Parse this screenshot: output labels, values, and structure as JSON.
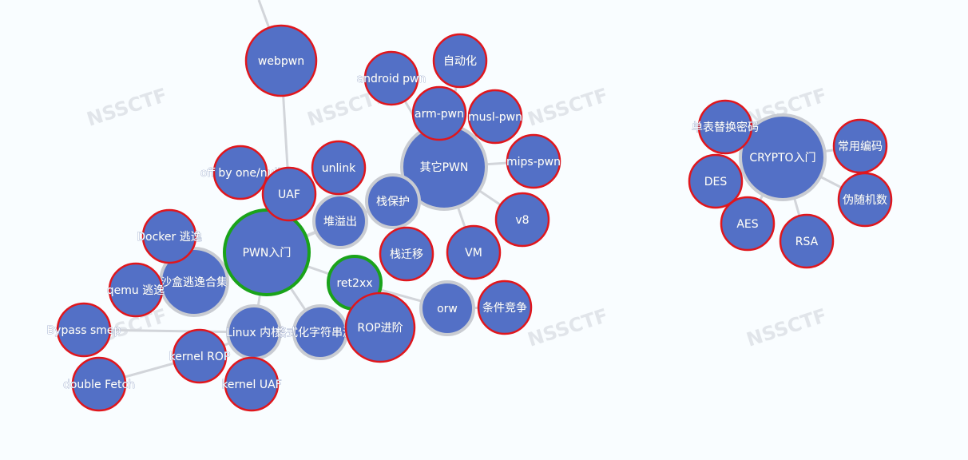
{
  "watermark": "NSSCTF",
  "colors": {
    "node_fill": "#5370c6",
    "leaf_border": "#e0161c",
    "hub_border": "#c9ccd2",
    "active_border": "#1aa31a",
    "edge": "#d2d5da"
  },
  "nodes": [
    {
      "id": "webpwn",
      "label": "webpwn",
      "kind": "leaf"
    },
    {
      "id": "android",
      "label": "android pwn",
      "kind": "leaf"
    },
    {
      "id": "auto",
      "label": "自动化",
      "kind": "leaf"
    },
    {
      "id": "arm",
      "label": "arm-pwn",
      "kind": "leaf"
    },
    {
      "id": "musl",
      "label": "musl-pwn",
      "kind": "leaf"
    },
    {
      "id": "other",
      "label": "其它PWN",
      "kind": "hub"
    },
    {
      "id": "mips",
      "label": "mips-pwn",
      "kind": "leaf"
    },
    {
      "id": "unlink",
      "label": "unlink",
      "kind": "leaf"
    },
    {
      "id": "offby",
      "label": "off by one/null",
      "kind": "leaf"
    },
    {
      "id": "uaf",
      "label": "UAF",
      "kind": "leaf"
    },
    {
      "id": "stackprot",
      "label": "栈保护",
      "kind": "hub"
    },
    {
      "id": "heap",
      "label": "堆溢出",
      "kind": "hub"
    },
    {
      "id": "v8",
      "label": "v8",
      "kind": "leaf"
    },
    {
      "id": "pwn",
      "label": "PWN入门",
      "kind": "active"
    },
    {
      "id": "stackmig",
      "label": "栈迁移",
      "kind": "leaf"
    },
    {
      "id": "vm",
      "label": "VM",
      "kind": "leaf"
    },
    {
      "id": "docker",
      "label": "Docker 逃逸",
      "kind": "leaf"
    },
    {
      "id": "sandbox",
      "label": "沙盒逃逸合集",
      "kind": "hub"
    },
    {
      "id": "qemu",
      "label": "qemu 逃逸",
      "kind": "leaf"
    },
    {
      "id": "ret2xx",
      "label": "ret2xx",
      "kind": "active"
    },
    {
      "id": "rop",
      "label": "ROP进阶",
      "kind": "leaf"
    },
    {
      "id": "orw",
      "label": "orw",
      "kind": "hub"
    },
    {
      "id": "race",
      "label": "条件竞争",
      "kind": "leaf"
    },
    {
      "id": "bypass",
      "label": "Bypass smep",
      "kind": "leaf"
    },
    {
      "id": "kernel",
      "label": "Linux 内核",
      "kind": "hub"
    },
    {
      "id": "fmt",
      "label": "格式化字符串漏洞",
      "kind": "hub"
    },
    {
      "id": "kernrop",
      "label": "kernel ROP",
      "kind": "leaf"
    },
    {
      "id": "dfetch",
      "label": "double Fetch",
      "kind": "leaf"
    },
    {
      "id": "kuaf",
      "label": "kernel UAF",
      "kind": "leaf"
    },
    {
      "id": "subst",
      "label": "单表替换密码",
      "kind": "leaf"
    },
    {
      "id": "crypto",
      "label": "CRYPTO入门",
      "kind": "hub"
    },
    {
      "id": "encode",
      "label": "常用编码",
      "kind": "leaf"
    },
    {
      "id": "des",
      "label": "DES",
      "kind": "leaf"
    },
    {
      "id": "prng",
      "label": "伪随机数",
      "kind": "leaf"
    },
    {
      "id": "aes",
      "label": "AES",
      "kind": "leaf"
    },
    {
      "id": "rsa",
      "label": "RSA",
      "kind": "leaf"
    }
  ],
  "edges": [
    [
      "pwn",
      "uaf"
    ],
    [
      "pwn",
      "heap"
    ],
    [
      "pwn",
      "stackprot"
    ],
    [
      "pwn",
      "ret2xx"
    ],
    [
      "pwn",
      "sandbox"
    ],
    [
      "pwn",
      "kernel"
    ],
    [
      "pwn",
      "fmt"
    ],
    [
      "uaf",
      "webpwn"
    ],
    [
      "uaf",
      "offby"
    ],
    [
      "heap",
      "unlink"
    ],
    [
      "stackprot",
      "other"
    ],
    [
      "stackprot",
      "stackmig"
    ],
    [
      "other",
      "arm"
    ],
    [
      "other",
      "musl"
    ],
    [
      "other",
      "mips"
    ],
    [
      "other",
      "v8"
    ],
    [
      "other",
      "vm"
    ],
    [
      "other",
      "android"
    ],
    [
      "other",
      "auto"
    ],
    [
      "ret2xx",
      "rop"
    ],
    [
      "ret2xx",
      "orw"
    ],
    [
      "orw",
      "race"
    ],
    [
      "sandbox",
      "docker"
    ],
    [
      "sandbox",
      "qemu"
    ],
    [
      "kernel",
      "bypass"
    ],
    [
      "kernel",
      "kernrop"
    ],
    [
      "kernel",
      "kuaf"
    ],
    [
      "kernrop",
      "dfetch"
    ],
    [
      "crypto",
      "subst"
    ],
    [
      "crypto",
      "encode"
    ],
    [
      "crypto",
      "des"
    ],
    [
      "crypto",
      "prng"
    ],
    [
      "crypto",
      "aes"
    ],
    [
      "crypto",
      "rsa"
    ]
  ]
}
